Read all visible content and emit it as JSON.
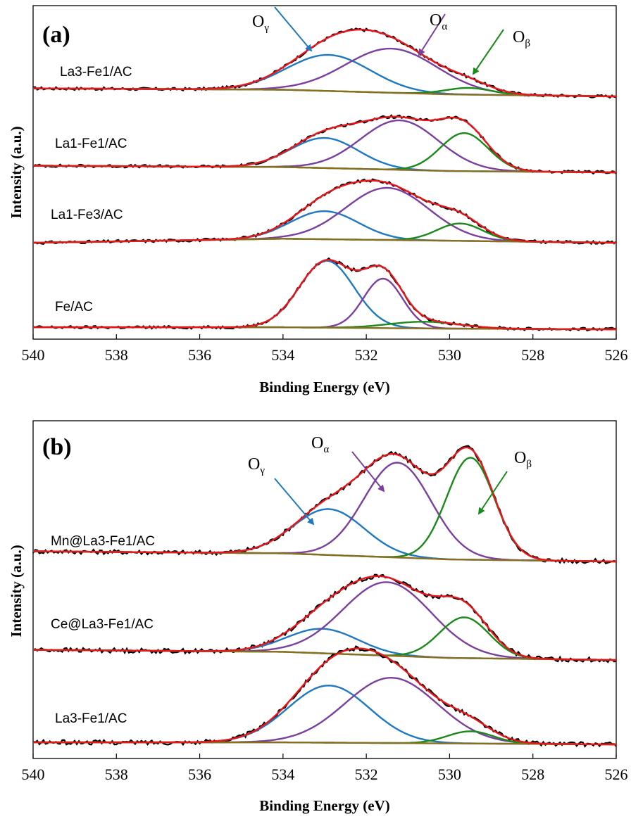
{
  "chart_data": [
    {
      "type": "line",
      "panel_label": "(a)",
      "xlabel": "Binding Energy (eV)",
      "ylabel": "Intensity (a.u.)",
      "xlim": [
        540,
        526
      ],
      "x_reversed": true,
      "x_ticks": [
        "540",
        "538",
        "536",
        "534",
        "532",
        "530",
        "528",
        "526"
      ],
      "y_ticks_shown": false,
      "grid": false,
      "colors": {
        "raw": "#000000",
        "fit": "#e8161b",
        "O_gamma": "#1f78c1",
        "O_alpha": "#7b3fa0",
        "O_beta": "#1a8a1a",
        "background": "#8a6d1e"
      },
      "annotations": [
        {
          "base": "O",
          "sub": "γ",
          "component": "O_gamma",
          "x": 534.3
        },
        {
          "base": "O",
          "sub": "α",
          "component": "O_alpha",
          "x": 530.7
        },
        {
          "base": "O",
          "sub": "β",
          "component": "O_beta",
          "x": 528.8
        }
      ],
      "series": [
        {
          "name": "La3-Fe1/AC",
          "background": {
            "x": [
              540,
              534,
              530,
              526
            ],
            "y": [
              0.12,
              0.1,
              0.03,
              0.0
            ]
          },
          "components": [
            {
              "id": "O_gamma",
              "center": 532.9,
              "height": 0.54,
              "fwhm": 2.35
            },
            {
              "id": "O_alpha",
              "center": 531.4,
              "height": 0.66,
              "fwhm": 2.6
            },
            {
              "id": "O_beta",
              "center": 529.55,
              "height": 0.1,
              "fwhm": 1.3
            }
          ]
        },
        {
          "name": "La1-Fe1/AC",
          "background": {
            "x": [
              540,
              534,
              530,
              526
            ],
            "y": [
              0.1,
              0.08,
              0.02,
              0.0
            ]
          },
          "components": [
            {
              "id": "O_gamma",
              "center": 533.0,
              "height": 0.45,
              "fwhm": 1.9
            },
            {
              "id": "O_alpha",
              "center": 531.2,
              "height": 0.74,
              "fwhm": 2.2
            },
            {
              "id": "O_beta",
              "center": 529.65,
              "height": 0.57,
              "fwhm": 1.35
            }
          ]
        },
        {
          "name": "La1-Fe3/AC",
          "background": {
            "x": [
              540,
              534,
              530,
              526
            ],
            "y": [
              0.0,
              0.06,
              0.03,
              0.0
            ]
          },
          "components": [
            {
              "id": "O_gamma",
              "center": 533.0,
              "height": 0.42,
              "fwhm": 1.9
            },
            {
              "id": "O_alpha",
              "center": 531.5,
              "height": 0.78,
              "fwhm": 2.35
            },
            {
              "id": "O_beta",
              "center": 529.75,
              "height": 0.26,
              "fwhm": 1.3
            }
          ]
        },
        {
          "name": "Fe/AC",
          "background": {
            "x": [
              540,
              534,
              530,
              526
            ],
            "y": [
              0.03,
              0.03,
              0.01,
              0.0
            ]
          },
          "components": [
            {
              "id": "O_gamma",
              "center": 532.95,
              "height": 1.0,
              "fwhm": 1.55
            },
            {
              "id": "O_alpha",
              "center": 531.6,
              "height": 0.74,
              "fwhm": 1.1
            },
            {
              "id": "O_beta",
              "center": 530.6,
              "height": 0.1,
              "fwhm": 2.0
            }
          ]
        }
      ]
    },
    {
      "type": "line",
      "panel_label": "(b)",
      "xlabel": "Binding Energy (eV)",
      "ylabel": "Intensity (a.u.)",
      "xlim": [
        540,
        526
      ],
      "x_reversed": true,
      "x_ticks": [
        "540",
        "538",
        "536",
        "534",
        "532",
        "530",
        "528",
        "526"
      ],
      "y_ticks_shown": false,
      "grid": false,
      "colors": {
        "raw": "#000000",
        "fit": "#e8161b",
        "O_gamma": "#1f78c1",
        "O_alpha": "#7b3fa0",
        "O_beta": "#1a8a1a",
        "background": "#8a6d1e"
      },
      "annotations": [
        {
          "base": "O",
          "sub": "γ",
          "component": "O_gamma",
          "x": 534.3
        },
        {
          "base": "O",
          "sub": "α",
          "component": "O_alpha",
          "x": 532.2
        },
        {
          "base": "O",
          "sub": "β",
          "component": "O_beta",
          "x": 528.8
        }
      ],
      "series": [
        {
          "name": "Mn@La3-Fe1/AC",
          "background": {
            "x": [
              540,
              534,
              530,
              526
            ],
            "y": [
              0.1,
              0.08,
              0.02,
              0.0
            ]
          },
          "components": [
            {
              "id": "O_gamma",
              "center": 532.9,
              "height": 0.45,
              "fwhm": 2.0
            },
            {
              "id": "O_alpha",
              "center": 531.25,
              "height": 0.93,
              "fwhm": 1.9
            },
            {
              "id": "O_beta",
              "center": 529.5,
              "height": 1.0,
              "fwhm": 1.35
            }
          ]
        },
        {
          "name": "Ce@La3-Fe1/AC",
          "background": {
            "x": [
              540,
              534,
              530,
              526
            ],
            "y": [
              0.1,
              0.08,
              0.02,
              0.0
            ]
          },
          "components": [
            {
              "id": "O_gamma",
              "center": 533.05,
              "height": 0.24,
              "fwhm": 2.0
            },
            {
              "id": "O_alpha",
              "center": 531.5,
              "height": 0.72,
              "fwhm": 2.5
            },
            {
              "id": "O_beta",
              "center": 529.65,
              "height": 0.4,
              "fwhm": 1.4
            }
          ]
        },
        {
          "name": "La3-Fe1/AC",
          "background": {
            "x": [
              540,
              534,
              530,
              526
            ],
            "y": [
              0.02,
              0.02,
              0.01,
              0.0
            ]
          },
          "components": [
            {
              "id": "O_gamma",
              "center": 532.9,
              "height": 0.56,
              "fwhm": 2.3
            },
            {
              "id": "O_alpha",
              "center": 531.4,
              "height": 0.64,
              "fwhm": 2.6
            },
            {
              "id": "O_beta",
              "center": 529.5,
              "height": 0.12,
              "fwhm": 1.3
            }
          ]
        }
      ]
    }
  ]
}
